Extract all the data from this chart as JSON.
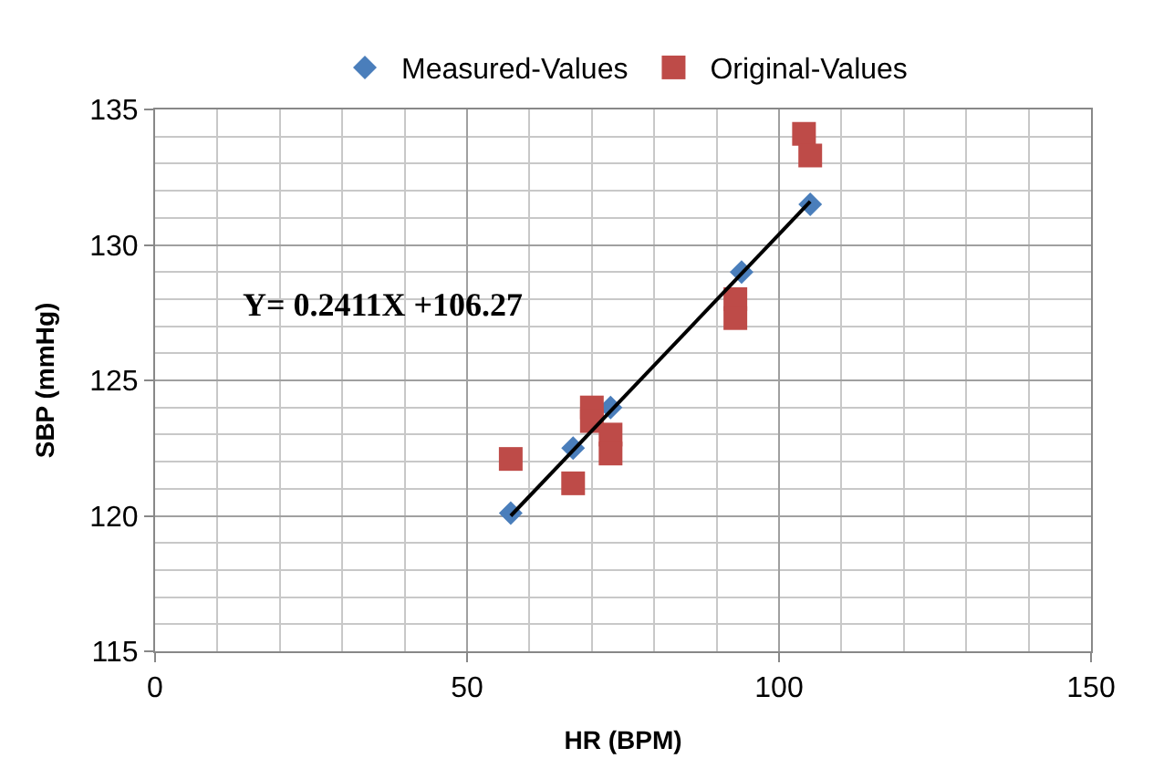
{
  "chart_data": {
    "type": "scatter",
    "xlabel": "HR (BPM)",
    "ylabel": "SBP (mmHg)",
    "xlim": [
      0,
      150
    ],
    "xticks": [
      0,
      50,
      100,
      150
    ],
    "ylim": [
      115,
      135
    ],
    "yticks": [
      115,
      120,
      125,
      130,
      135
    ],
    "grid": true,
    "legend": "top",
    "annotations": [
      "Y= 0.2411X +106.27"
    ],
    "series": [
      {
        "name": "Measured-Values",
        "color": "#4a7ebb",
        "marker": "diamond",
        "x": [
          57,
          67,
          73,
          94,
          105
        ],
        "values": [
          120.1,
          122.5,
          124,
          129,
          131.5
        ]
      },
      {
        "name": "Original-Values",
        "color": "#be4b48",
        "marker": "square",
        "x": [
          57,
          67,
          70,
          70,
          73,
          73,
          93,
          93,
          104,
          105
        ],
        "values": [
          122.1,
          121.2,
          124,
          123.5,
          123,
          122.3,
          128,
          127.3,
          134.1,
          133.3
        ]
      },
      {
        "type": "line",
        "color": "#000000",
        "x": [
          57,
          105
        ],
        "values": [
          120.0,
          131.6
        ]
      }
    ]
  }
}
